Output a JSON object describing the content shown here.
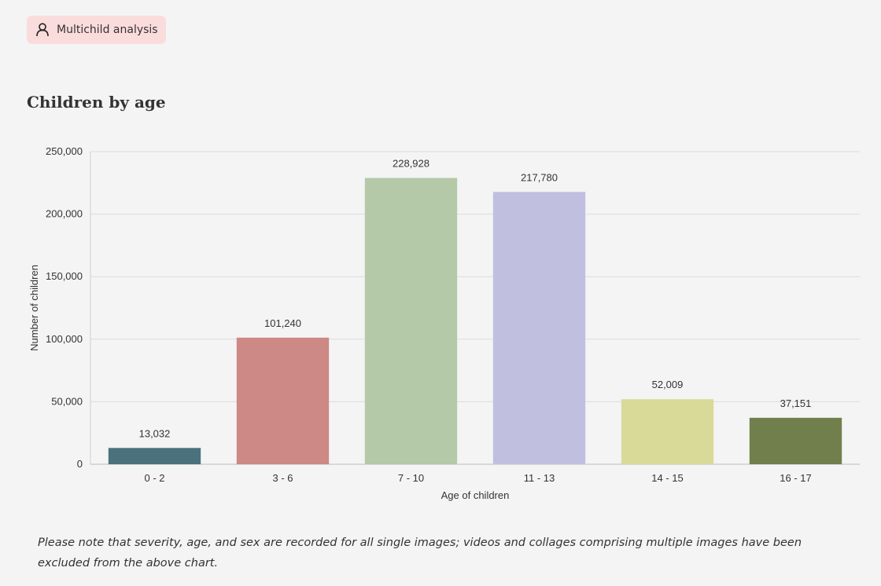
{
  "header": {
    "badge_label": "Multichild analysis",
    "badge_icon": "user-icon",
    "badge_color": "#fbdcdc"
  },
  "section": {
    "title": "Children by age"
  },
  "chart_data": {
    "type": "bar",
    "categories": [
      "0 - 2",
      "3 - 6",
      "7 - 10",
      "11 - 13",
      "14 - 15",
      "16 - 17"
    ],
    "values": [
      13032,
      101240,
      228928,
      217780,
      52009,
      37151
    ],
    "value_labels": [
      "13,032",
      "101,240",
      "228,928",
      "217,780",
      "52,009",
      "37,151"
    ],
    "colors": [
      "#4b727c",
      "#cd8985",
      "#b3c9a8",
      "#c1bfe0",
      "#d9da98",
      "#717f4d"
    ],
    "xlabel": "Age of children",
    "ylabel": "Number of children",
    "ylim": [
      0,
      250000
    ],
    "yticks": [
      0,
      50000,
      100000,
      150000,
      200000,
      250000
    ],
    "ytick_labels": [
      "0",
      "50,000",
      "100,000",
      "150,000",
      "200,000",
      "250,000"
    ],
    "grid": true,
    "legend": "none"
  },
  "footnote": "Please note that severity, age, and sex are recorded for all single images; videos and collages comprising multiple images have been excluded from the above chart."
}
